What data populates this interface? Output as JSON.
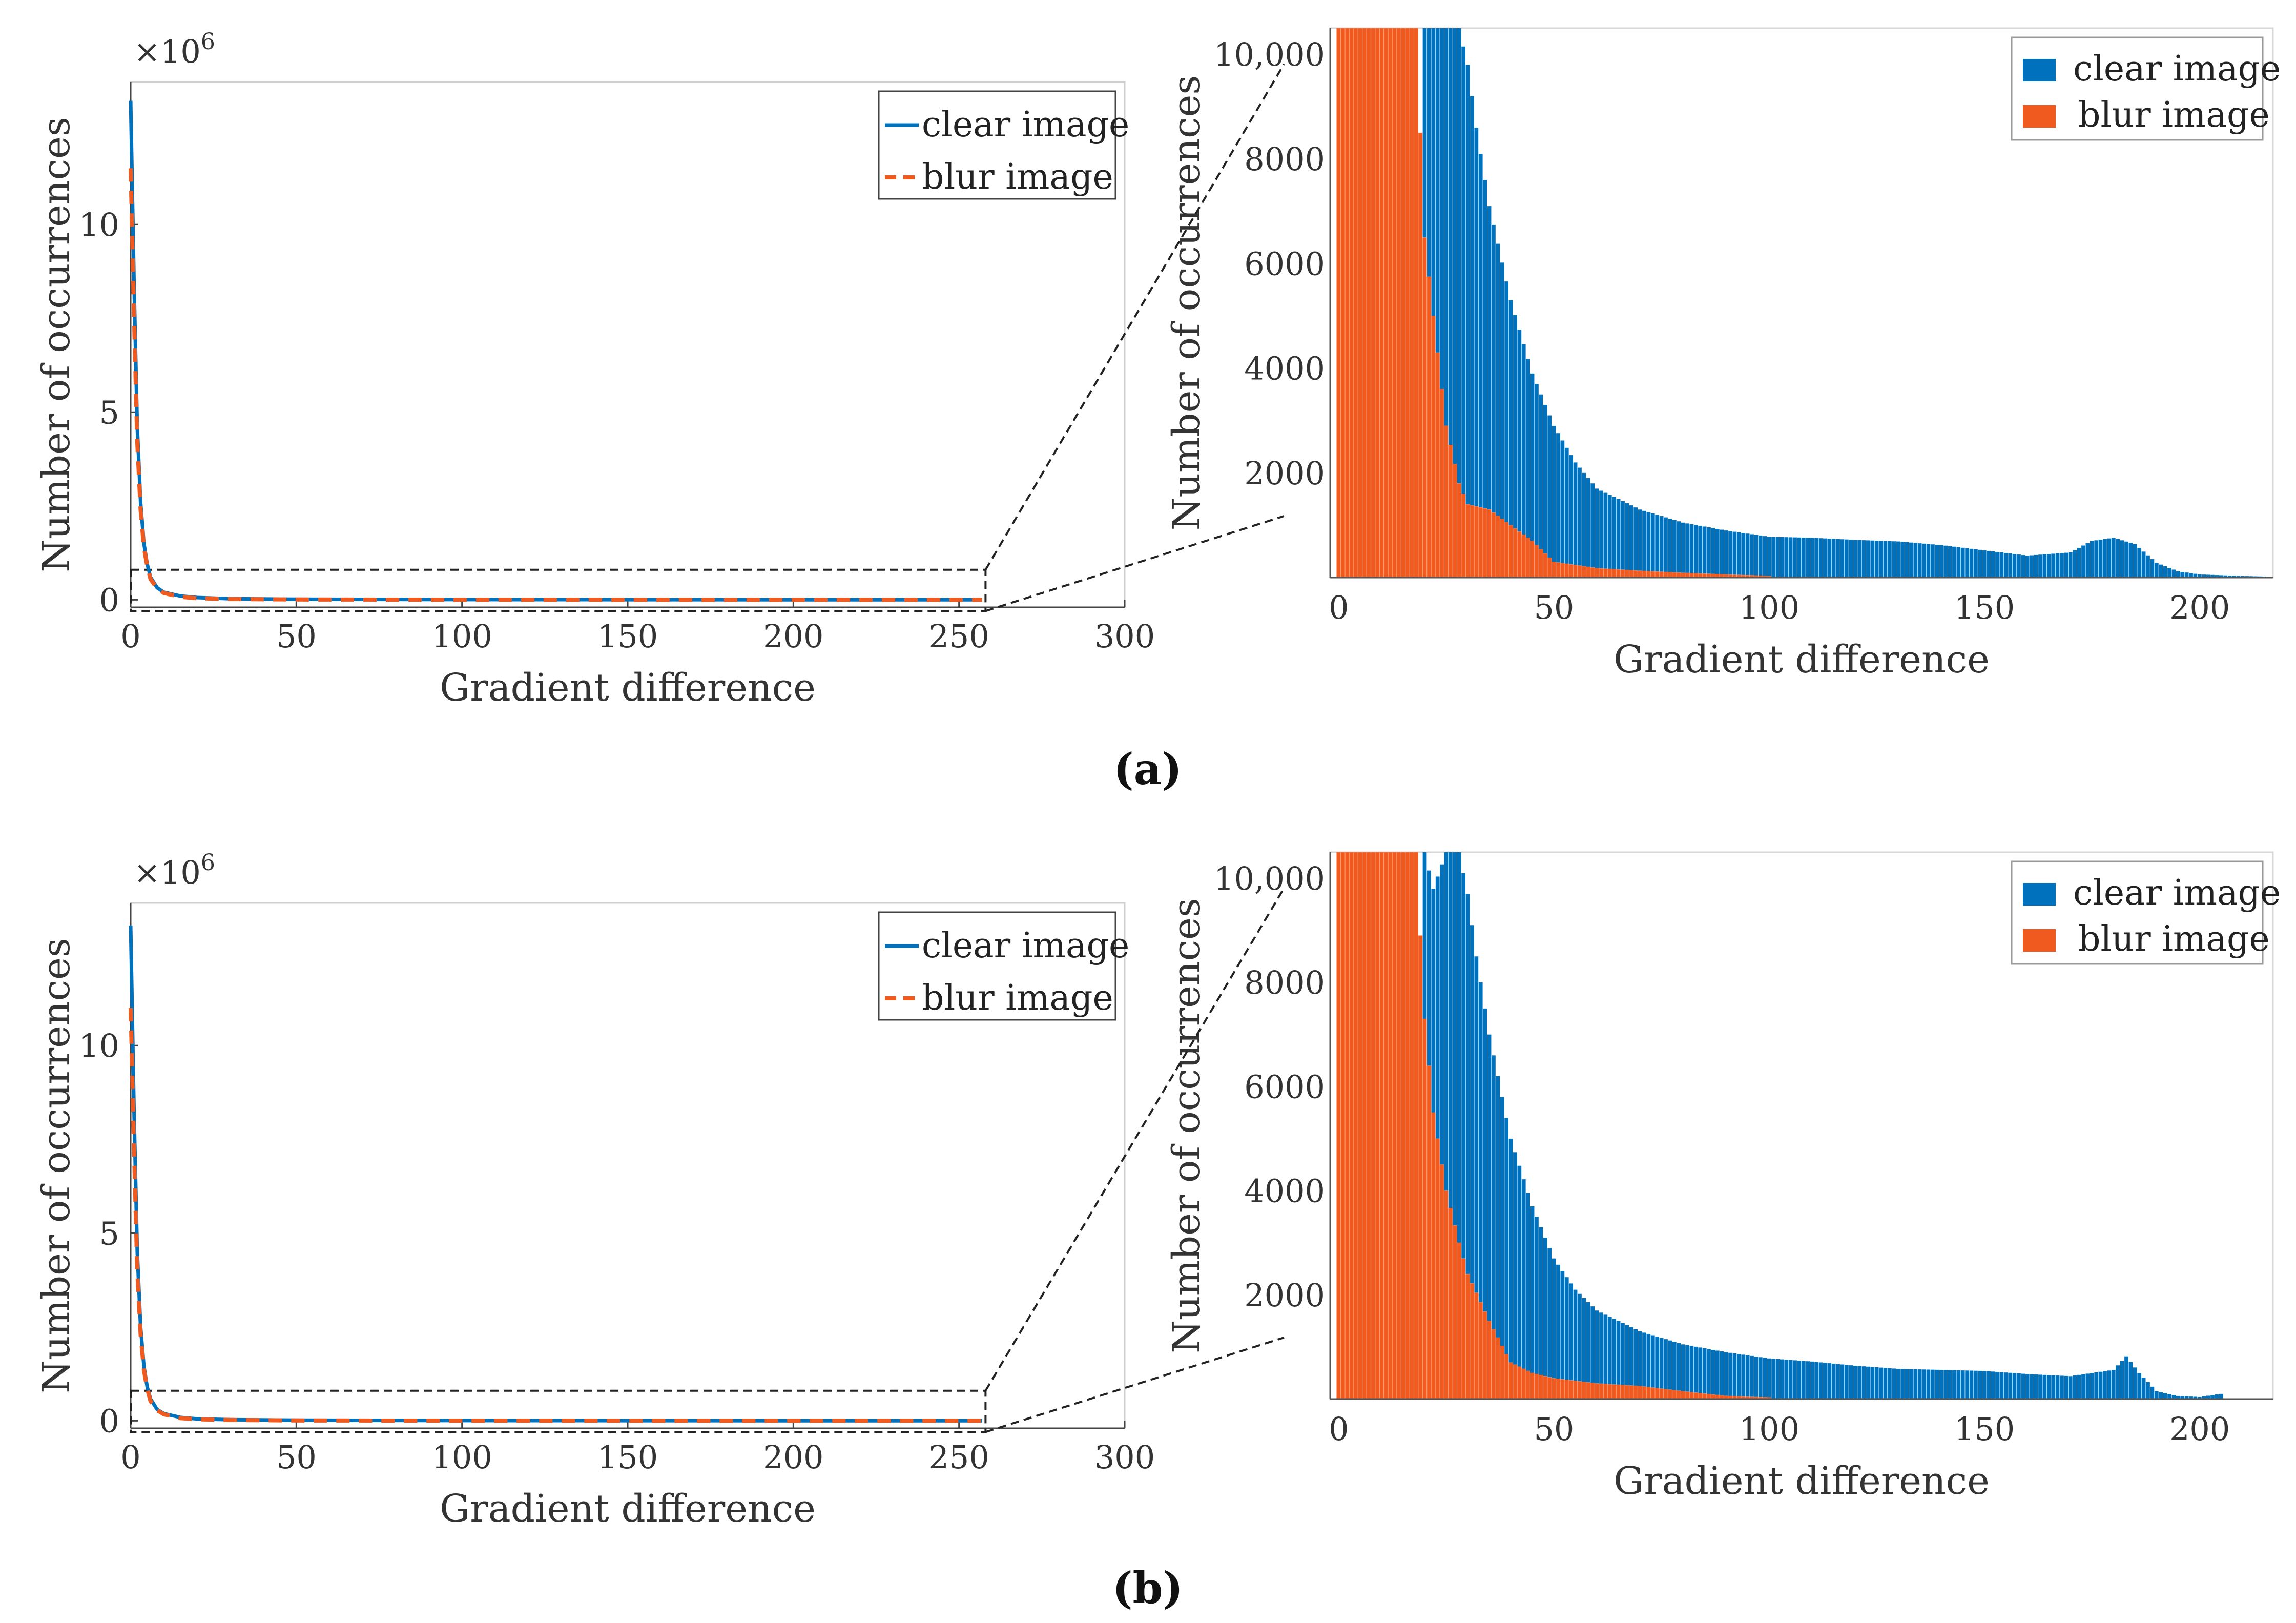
{
  "captions": [
    "(a)",
    "(b)"
  ],
  "zoom_box": "dashed",
  "colors": {
    "clear": "#0072BD",
    "blur": "#F05A1E"
  },
  "chart_data": [
    {
      "panel": "a",
      "type": "line",
      "title": "",
      "xlabel": "Gradient difference",
      "ylabel": "Number of occurrences",
      "exponent_label": "×10",
      "exponent_power": "6",
      "xlim": [
        0,
        300
      ],
      "ylim": [
        -0.2,
        13.8
      ],
      "xticks": [
        0,
        50,
        100,
        150,
        200,
        250,
        300
      ],
      "yticks": [
        0,
        5,
        10
      ],
      "legend": [
        "clear image",
        "blur image"
      ],
      "legend_position": "top-right",
      "zoom_region": {
        "x": [
          0,
          258
        ],
        "y": [
          -0.3,
          0.8
        ]
      },
      "series": [
        {
          "name": "clear image",
          "x": [
            0,
            1,
            2,
            3,
            4,
            5,
            6,
            8,
            10,
            15,
            20,
            30,
            50,
            100,
            150,
            200,
            257
          ],
          "values": [
            13.3,
            8.5,
            4.6,
            2.6,
            1.5,
            0.95,
            0.6,
            0.32,
            0.2,
            0.1,
            0.06,
            0.03,
            0.015,
            0.006,
            0.004,
            0.002,
            0.001
          ]
        },
        {
          "name": "blur image",
          "x": [
            0,
            1,
            2,
            3,
            4,
            5,
            6,
            8,
            10,
            15,
            20,
            30,
            50,
            100,
            150,
            200,
            257
          ],
          "values": [
            11.5,
            7.6,
            4.2,
            2.4,
            1.4,
            0.9,
            0.55,
            0.3,
            0.18,
            0.08,
            0.04,
            0.02,
            0.008,
            0.003,
            0.002,
            0.001,
            0.0005
          ]
        }
      ]
    },
    {
      "panel": "a",
      "type": "bar",
      "title": "",
      "xlabel": "Gradient difference",
      "ylabel": "Number of occurrences",
      "xlim": [
        -2,
        217
      ],
      "ylim": [
        0,
        10500
      ],
      "xticks": [
        0,
        50,
        100,
        150,
        200
      ],
      "yticks": [
        2000,
        4000,
        6000,
        8000,
        10000
      ],
      "ytick_labels": [
        "2000",
        "4000",
        "6000",
        "8000",
        "10,000"
      ],
      "legend": [
        "clear image",
        "blur image"
      ],
      "legend_position": "top-right",
      "series": [
        {
          "name": "clear image",
          "x": [
            20,
            25,
            28,
            30,
            32,
            35,
            40,
            45,
            50,
            55,
            60,
            65,
            70,
            80,
            90,
            100,
            110,
            120,
            130,
            140,
            150,
            160,
            170,
            175,
            180,
            185,
            190,
            195,
            200,
            210,
            215
          ],
          "values": [
            10500,
            10500,
            10500,
            9800,
            8600,
            7100,
            5300,
            3900,
            2900,
            2200,
            1700,
            1500,
            1300,
            1050,
            900,
            780,
            760,
            720,
            690,
            620,
            520,
            420,
            480,
            700,
            760,
            640,
            280,
            120,
            60,
            30,
            20
          ]
        },
        {
          "name": "blur image",
          "x": [
            0,
            5,
            10,
            15,
            18,
            20,
            22,
            25,
            28,
            30,
            35,
            40,
            45,
            50,
            60,
            70,
            80,
            90,
            100
          ],
          "values": [
            10500,
            10500,
            10500,
            10500,
            10500,
            6500,
            5000,
            2900,
            1800,
            1400,
            1300,
            1000,
            700,
            300,
            180,
            130,
            90,
            60,
            30
          ]
        }
      ]
    },
    {
      "panel": "b",
      "type": "line",
      "title": "",
      "xlabel": "Gradient difference",
      "ylabel": "Number of occurrences",
      "exponent_label": "×10",
      "exponent_power": "6",
      "xlim": [
        0,
        300
      ],
      "ylim": [
        -0.2,
        13.8
      ],
      "xticks": [
        0,
        50,
        100,
        150,
        200,
        250,
        300
      ],
      "yticks": [
        0,
        5,
        10
      ],
      "legend": [
        "clear image",
        "blur image"
      ],
      "legend_position": "top-right",
      "zoom_region": {
        "x": [
          0,
          258
        ],
        "y": [
          -0.3,
          0.8
        ]
      },
      "series": [
        {
          "name": "clear image",
          "x": [
            0,
            1,
            2,
            3,
            4,
            5,
            6,
            8,
            10,
            15,
            20,
            30,
            50,
            100,
            150,
            200,
            257
          ],
          "values": [
            13.2,
            8.3,
            4.5,
            2.5,
            1.45,
            0.9,
            0.58,
            0.3,
            0.19,
            0.09,
            0.05,
            0.03,
            0.015,
            0.006,
            0.004,
            0.002,
            0.001
          ]
        },
        {
          "name": "blur image",
          "x": [
            0,
            1,
            2,
            3,
            4,
            5,
            6,
            8,
            10,
            15,
            20,
            30,
            50,
            100,
            150,
            200,
            257
          ],
          "values": [
            11.0,
            7.3,
            4.0,
            2.3,
            1.35,
            0.85,
            0.52,
            0.28,
            0.17,
            0.07,
            0.04,
            0.02,
            0.008,
            0.003,
            0.002,
            0.001,
            0.0005
          ]
        }
      ]
    },
    {
      "panel": "b",
      "type": "bar",
      "title": "",
      "xlabel": "Gradient difference",
      "ylabel": "Number of occurrences",
      "xlim": [
        -2,
        217
      ],
      "ylim": [
        0,
        10500
      ],
      "xticks": [
        0,
        50,
        100,
        150,
        200
      ],
      "yticks": [
        2000,
        4000,
        6000,
        8000,
        10000
      ],
      "ytick_labels": [
        "2000",
        "4000",
        "6000",
        "8000",
        "10,000"
      ],
      "legend": [
        "clear image",
        "blur image"
      ],
      "legend_position": "top-right",
      "series": [
        {
          "name": "clear image",
          "x": [
            20,
            22,
            25,
            28,
            30,
            32,
            35,
            40,
            45,
            50,
            55,
            60,
            65,
            70,
            80,
            90,
            100,
            110,
            120,
            130,
            140,
            150,
            160,
            170,
            180,
            183,
            186,
            190,
            195,
            200,
            205
          ],
          "values": [
            10500,
            9800,
            10500,
            10500,
            9700,
            8500,
            7000,
            5000,
            3700,
            2700,
            2100,
            1700,
            1500,
            1300,
            1050,
            900,
            780,
            720,
            640,
            580,
            560,
            540,
            480,
            440,
            560,
            820,
            500,
            150,
            60,
            40,
            100
          ]
        },
        {
          "name": "blur image",
          "x": [
            0,
            5,
            10,
            15,
            18,
            20,
            22,
            25,
            28,
            30,
            35,
            40,
            45,
            50,
            60,
            70,
            80,
            90,
            100
          ],
          "values": [
            10500,
            10500,
            10500,
            10500,
            10500,
            7300,
            5500,
            4000,
            3000,
            2400,
            1500,
            700,
            500,
            400,
            300,
            250,
            150,
            60,
            30
          ]
        }
      ]
    }
  ]
}
